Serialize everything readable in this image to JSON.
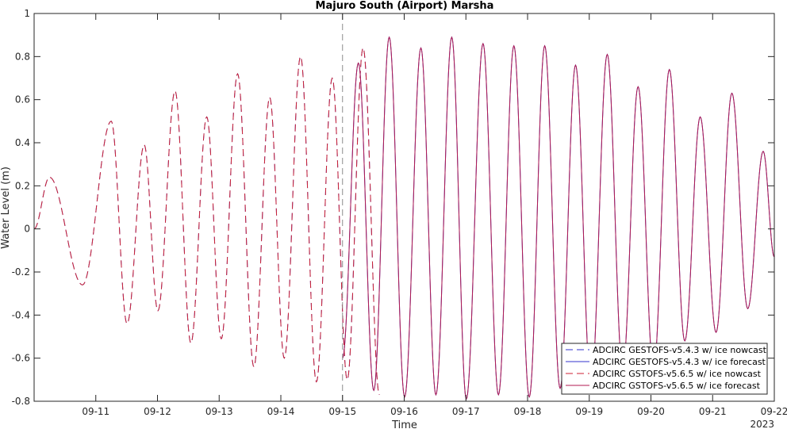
{
  "chart_data": {
    "type": "line",
    "title": "Majuro South (Airport) Marsha",
    "xlabel": "Time",
    "ylabel": "Water Level (m)",
    "year_label": "2023",
    "x_tick_labels": [
      "09-11",
      "09-12",
      "09-13",
      "09-14",
      "09-15",
      "09-16",
      "09-17",
      "09-18",
      "09-19",
      "09-20",
      "09-21",
      "09-22"
    ],
    "y_tick_labels": [
      "-0.8",
      "-0.6",
      "-0.4",
      "-0.2",
      "0",
      "0.2",
      "0.4",
      "0.6",
      "0.8",
      "1"
    ],
    "xlim": [
      "2023-09-10 00:00",
      "2023-09-22 00:00"
    ],
    "ylim": [
      -0.8,
      1
    ],
    "nowcast_end": "2023-09-15 00:00",
    "grid": false,
    "legend_position": "bottom-right",
    "extrema_note": "times in fractional days since 2023-09-10 00:00 are encoded by the drawing script",
    "nowcast_extrema": [
      [
        "2023-09-10 00:00",
        0.0
      ],
      [
        "2023-09-10 06:00",
        0.24
      ],
      [
        "2023-09-10 18:50",
        -0.26
      ],
      [
        "2023-09-11 06:00",
        0.5
      ],
      [
        "2023-09-11 12:10",
        -0.44
      ],
      [
        "2023-09-11 18:50",
        0.39
      ],
      [
        "2023-09-12 00:10",
        -0.38
      ],
      [
        "2023-09-12 06:50",
        0.64
      ],
      [
        "2023-09-12 13:00",
        -0.53
      ],
      [
        "2023-09-12 19:10",
        0.52
      ],
      [
        "2023-09-13 00:50",
        -0.51
      ],
      [
        "2023-09-13 07:10",
        0.72
      ],
      [
        "2023-09-13 13:30",
        -0.64
      ],
      [
        "2023-09-13 19:40",
        0.61
      ],
      [
        "2023-09-14 01:20",
        -0.6
      ],
      [
        "2023-09-14 07:40",
        0.8
      ],
      [
        "2023-09-14 13:50",
        -0.71
      ],
      [
        "2023-09-14 20:00",
        0.7
      ],
      [
        "2023-09-15 01:50",
        -0.7
      ],
      [
        "2023-09-15 08:00",
        0.84
      ],
      [
        "2023-09-15 14:20",
        -0.77
      ],
      [
        "2023-09-15 00:00",
        -0.6
      ]
    ],
    "forecast_extrema": [
      [
        "2023-09-15 00:00",
        -0.6
      ],
      [
        "2023-09-15 06:10",
        0.77
      ],
      [
        "2023-09-15 12:10",
        -0.75
      ],
      [
        "2023-09-15 18:10",
        0.89
      ],
      [
        "2023-09-16 00:10",
        -0.78
      ],
      [
        "2023-09-16 06:30",
        0.84
      ],
      [
        "2023-09-16 12:20",
        -0.77
      ],
      [
        "2023-09-16 18:30",
        0.89
      ],
      [
        "2023-09-17 00:10",
        -0.79
      ],
      [
        "2023-09-17 06:40",
        0.86
      ],
      [
        "2023-09-17 12:40",
        -0.77
      ],
      [
        "2023-09-17 18:40",
        0.85
      ],
      [
        "2023-09-18 00:40",
        -0.78
      ],
      [
        "2023-09-18 06:40",
        0.85
      ],
      [
        "2023-09-18 12:40",
        -0.74
      ],
      [
        "2023-09-18 18:40",
        0.76
      ],
      [
        "2023-09-19 00:40",
        -0.74
      ],
      [
        "2023-09-19 07:00",
        0.81
      ],
      [
        "2023-09-19 13:00",
        -0.66
      ],
      [
        "2023-09-19 19:00",
        0.66
      ],
      [
        "2023-09-20 01:00",
        -0.66
      ],
      [
        "2023-09-20 07:10",
        0.74
      ],
      [
        "2023-09-20 13:10",
        -0.52
      ],
      [
        "2023-09-20 19:10",
        0.52
      ],
      [
        "2023-09-21 01:20",
        -0.48
      ],
      [
        "2023-09-21 07:30",
        0.63
      ],
      [
        "2023-09-21 13:40",
        -0.37
      ],
      [
        "2023-09-21 19:40",
        0.36
      ],
      [
        "2023-09-22 00:00",
        -0.13
      ]
    ],
    "series": [
      {
        "name": "ADCIRC GESTOFS-v5.4.3 w/ ice nowcast",
        "color": "#3333cc",
        "dash": "dashed",
        "phase": "nowcast"
      },
      {
        "name": "ADCIRC GESTOFS-v5.4.3 w/ ice forecast",
        "color": "#3333cc",
        "dash": "solid",
        "phase": "forecast"
      },
      {
        "name": "ADCIRC GSTOFS-v5.6.5 w/ ice nowcast",
        "color": "#cc2233",
        "dash": "dashed",
        "phase": "nowcast"
      },
      {
        "name": "ADCIRC GSTOFS-v5.6.5 w/ ice forecast",
        "color": "#b01a50",
        "dash": "solid",
        "phase": "forecast"
      }
    ]
  }
}
